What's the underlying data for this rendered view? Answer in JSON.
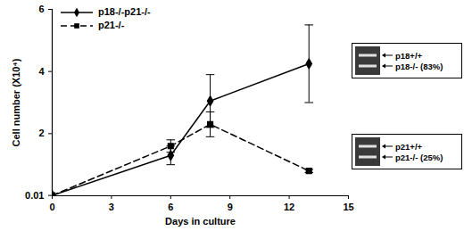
{
  "chart_data": {
    "type": "line",
    "x_label": "Days in culture",
    "y_label": "Cell number (X10⁴)",
    "x": [
      0,
      6,
      8,
      13
    ],
    "xlim": [
      0,
      15
    ],
    "xticks": [
      0,
      3,
      6,
      9,
      12,
      15
    ],
    "ylim": [
      0,
      6
    ],
    "yticks": [
      0.01,
      2,
      4,
      6
    ],
    "legend": "top-left",
    "series": [
      {
        "name": "p18-/-p21-/-",
        "color": "#000000",
        "marker": "diamond",
        "line_style": "solid",
        "values": [
          0.01,
          1.3,
          3.05,
          4.25
        ],
        "errors": [
          0,
          0.3,
          0.85,
          1.25
        ]
      },
      {
        "name": "p21-/-",
        "color": "#000000",
        "marker": "square",
        "line_style": "dashed",
        "values": [
          0.01,
          1.6,
          2.3,
          0.8
        ],
        "errors": [
          0,
          0.2,
          0.4,
          0.05
        ]
      }
    ],
    "annotations": [
      {
        "texts": [
          "p18+/+",
          "p18-/- (83%)"
        ]
      },
      {
        "texts": [
          "p21+/+",
          "p21-/- (25%)"
        ]
      }
    ]
  }
}
